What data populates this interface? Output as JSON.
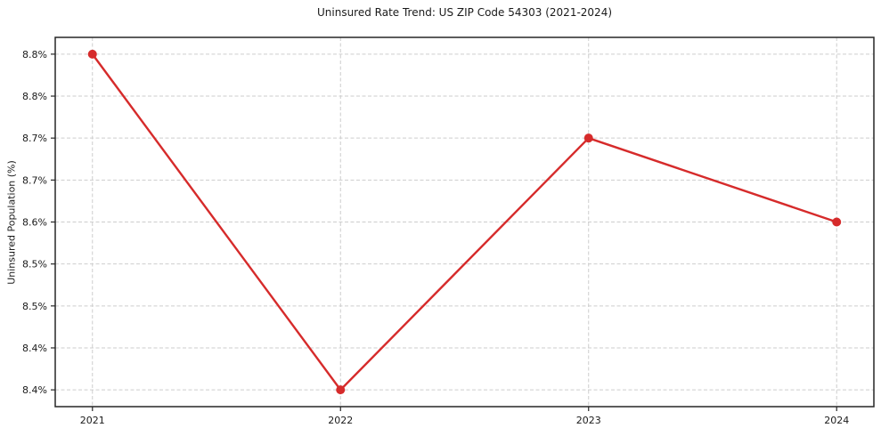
{
  "figure": {
    "background": "#ffffff"
  },
  "chart_data": {
    "type": "line",
    "title": "Uninsured Rate Trend: US ZIP Code 54303 (2021-2024)",
    "xlabel": "",
    "ylabel": "Uninsured Population (%)",
    "x": [
      2021,
      2022,
      2023,
      2024
    ],
    "series": [
      {
        "values": [
          8.8,
          8.4,
          8.7,
          8.6
        ],
        "color": "#d62b2b",
        "marker": "circle",
        "marker_radius": 5,
        "line_width": 2.4
      }
    ],
    "xlim": [
      2020.85,
      2024.15
    ],
    "ylim": [
      8.38,
      8.82
    ],
    "x_ticks": {
      "values": [
        2021,
        2022,
        2023,
        2024
      ],
      "labels": [
        "2021",
        "2022",
        "2023",
        "2024"
      ]
    },
    "y_ticks": {
      "values": [
        8.4,
        8.45,
        8.5,
        8.55,
        8.6,
        8.65,
        8.7,
        8.75,
        8.8
      ],
      "labels": [
        "8.4%",
        "8.4%",
        "8.5%",
        "8.5%",
        "8.6%",
        "8.7%",
        "8.7%",
        "8.8%",
        "8.8%"
      ]
    },
    "grid": {
      "visible": true,
      "style": "dashed",
      "color": "#cdcdcd"
    },
    "legend": {
      "visible": false
    },
    "frame_color": "#262626",
    "tick_color": "#262626",
    "text_color": "#1a1a1a"
  }
}
